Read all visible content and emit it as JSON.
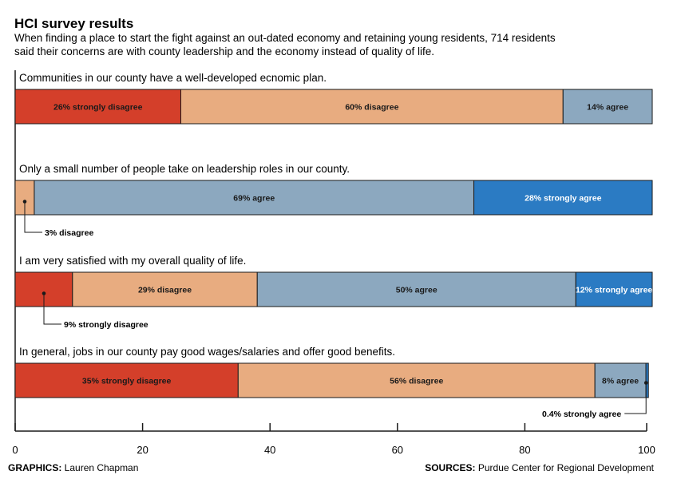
{
  "title": "HCI survey results",
  "subtitle_lines": [
    "When finding a place to start the fight against an out-dated economy and retaining young residents, 714 residents",
    "said their concerns are with county leadership and the economy instead of quality of life."
  ],
  "colors": {
    "strongly_disagree": "#d43f2a",
    "disagree": "#e8ac80",
    "agree": "#8ca8bf",
    "strongly_agree": "#2b7bc3"
  },
  "chart_data": {
    "type": "bar",
    "orientation": "horizontal",
    "stacked": true,
    "xlim": [
      0,
      100
    ],
    "x_ticks": [
      0,
      20,
      40,
      60,
      80,
      100
    ],
    "series_names": [
      "strongly disagree",
      "disagree",
      "agree",
      "strongly agree"
    ],
    "categories": [
      "Communities in our county have a well-developed ecnomic plan.",
      "Only a small number of people take on leadership roles in our county.",
      "I am very satisfied with my overall quality of life.",
      "In general, jobs in our county pay good wages/salaries and offer good benefits."
    ],
    "rows": [
      {
        "segments": [
          {
            "key": "strongly_disagree",
            "value": 26,
            "label": "26% strongly disagree"
          },
          {
            "key": "disagree",
            "value": 60,
            "label": "60% disagree"
          },
          {
            "key": "agree",
            "value": 14,
            "label": "14% agree"
          }
        ]
      },
      {
        "segments": [
          {
            "key": "disagree",
            "value": 3,
            "label": "3% disagree",
            "callout": true
          },
          {
            "key": "agree",
            "value": 69,
            "label": "69% agree"
          },
          {
            "key": "strongly_agree",
            "value": 28,
            "label": "28% strongly agree"
          }
        ]
      },
      {
        "segments": [
          {
            "key": "strongly_disagree",
            "value": 9,
            "label": "9% strongly disagree",
            "callout": true
          },
          {
            "key": "disagree",
            "value": 29,
            "label": "29% disagree"
          },
          {
            "key": "agree",
            "value": 50,
            "label": "50% agree"
          },
          {
            "key": "strongly_agree",
            "value": 12,
            "label": "12% strongly agree"
          }
        ]
      },
      {
        "segments": [
          {
            "key": "strongly_disagree",
            "value": 35,
            "label": "35% strongly disagree"
          },
          {
            "key": "disagree",
            "value": 56,
            "label": "56% disagree"
          },
          {
            "key": "agree",
            "value": 8,
            "label": "8% agree"
          },
          {
            "key": "strongly_agree",
            "value": 0.4,
            "label": "0.4% strongly agree",
            "callout": true
          }
        ]
      }
    ]
  },
  "footer": {
    "graphics_label": "GRAPHICS:",
    "graphics_name": " Lauren Chapman",
    "sources_label": "SOURCES:",
    "sources_name": " Purdue Center for Regional Development"
  }
}
